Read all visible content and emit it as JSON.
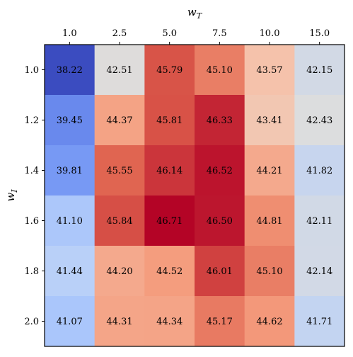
{
  "chart_data": {
    "type": "heatmap",
    "xlabel": "w_T",
    "ylabel": "w_I",
    "x_axis_position": "top",
    "x_categories": [
      "1.0",
      "2.5",
      "5.0",
      "7.5",
      "10.0",
      "15.0"
    ],
    "y_categories": [
      "1.0",
      "1.2",
      "1.4",
      "1.6",
      "1.8",
      "2.0"
    ],
    "values": [
      [
        38.22,
        42.51,
        45.79,
        45.1,
        43.57,
        42.15
      ],
      [
        39.45,
        44.37,
        45.81,
        46.33,
        43.41,
        42.43
      ],
      [
        39.81,
        45.55,
        46.14,
        46.52,
        44.21,
        41.82
      ],
      [
        41.1,
        45.84,
        46.71,
        46.5,
        44.81,
        42.11
      ],
      [
        41.44,
        44.2,
        44.52,
        46.01,
        45.1,
        42.14
      ],
      [
        41.07,
        44.31,
        44.34,
        45.17,
        44.62,
        41.71
      ]
    ],
    "colormap": "coolwarm",
    "vmin": 38.22,
    "vmax": 46.71,
    "colorbar": false,
    "grid": false
  }
}
